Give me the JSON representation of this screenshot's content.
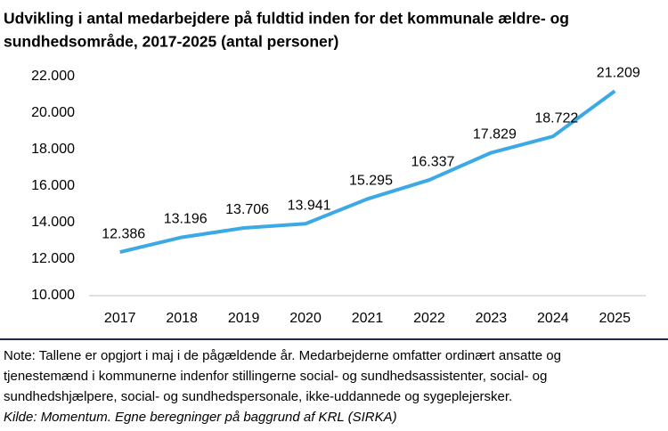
{
  "chart_data": {
    "type": "line",
    "title": [
      "Udvikling i antal medarbejdere på fuldtid inden for det kommunale ældre- og",
      "sundhedsområde, 2017-2025 (antal personer)"
    ],
    "categories": [
      "2017",
      "2018",
      "2019",
      "2020",
      "2021",
      "2022",
      "2023",
      "2024",
      "2025"
    ],
    "values": [
      12386,
      13196,
      13706,
      13941,
      15295,
      16337,
      17829,
      18722,
      21209
    ],
    "value_labels": [
      "12.386",
      "13.196",
      "13.706",
      "13.941",
      "15.295",
      "16.337",
      "17.829",
      "18.722",
      "21.209"
    ],
    "color": "#3ba9e6",
    "ylim": [
      10000,
      22000
    ],
    "yticks": [
      {
        "value": 10000,
        "label": "10.000"
      },
      {
        "value": 12000,
        "label": "12.000"
      },
      {
        "value": 14000,
        "label": "14.000"
      },
      {
        "value": 16000,
        "label": "16.000"
      },
      {
        "value": 18000,
        "label": "18.000"
      },
      {
        "value": 20000,
        "label": "20.000"
      },
      {
        "value": 22000,
        "label": "22.000"
      }
    ],
    "grid": false,
    "notes": [
      "Note: Tallene er opgjort i maj i de pågældende år. Medarbejderne omfatter ordinært ansatte og",
      "tjenestemænd i kommunerne indenfor stillingerne social- og sundhedsassistenter, social- og",
      "sundhedshjælpere, social- og sundhedspersonale, ikke-uddannede og sygeplejersker."
    ],
    "source": "Kilde: Momentum. Egne beregninger på baggrund af KRL (SIRKA)"
  }
}
